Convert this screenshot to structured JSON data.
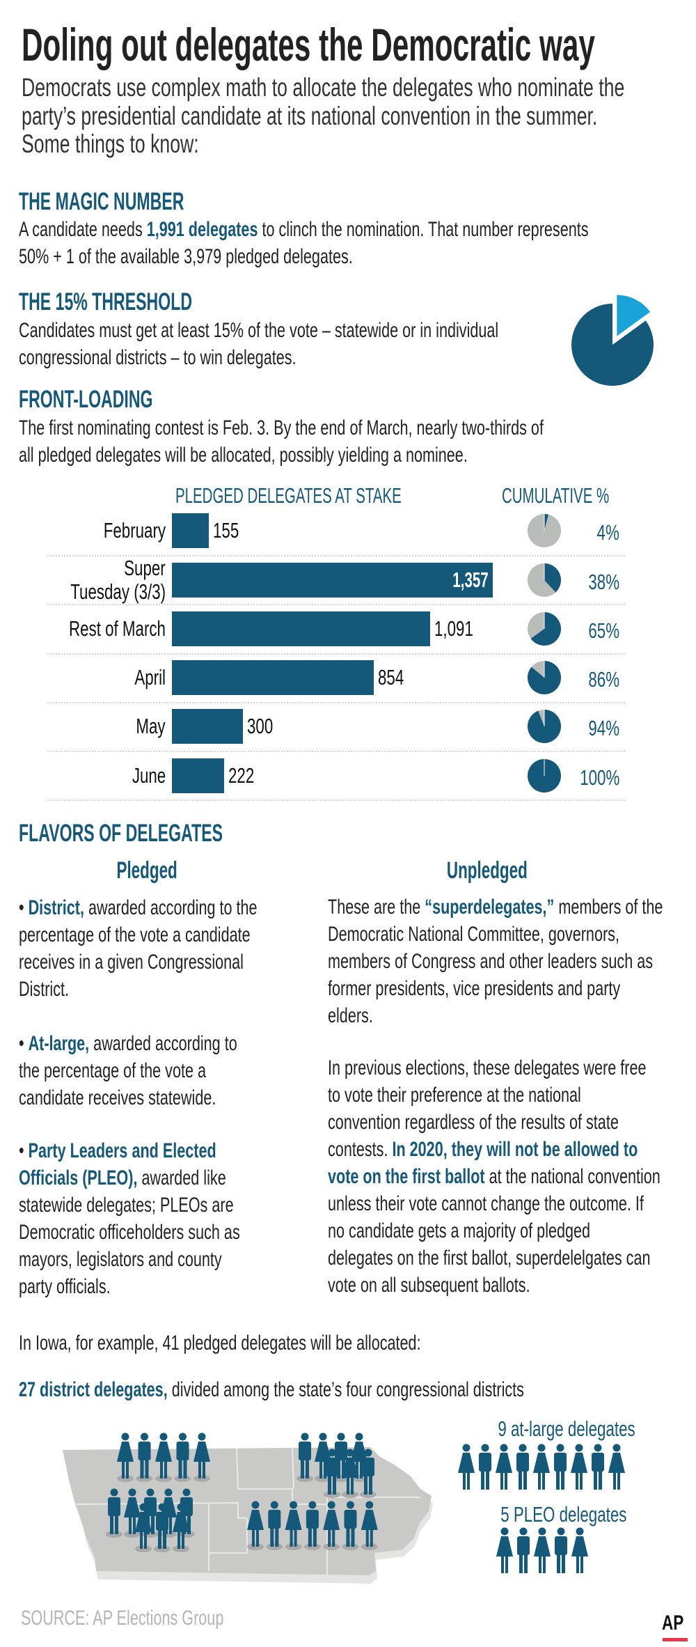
{
  "header": {
    "title": "Doling out delegates the Democratic way",
    "subtitle_lines": [
      [
        {
          "t": "Democrats use complex math to allocate the delegates who nominate the"
        }
      ],
      [
        {
          "t": "party’s presidential candidate at its national convention in the summer."
        }
      ],
      [
        {
          "t": "Some things to know:"
        }
      ]
    ]
  },
  "sections": {
    "magic": {
      "heading": "THE MAGIC NUMBER",
      "lines": [
        [
          {
            "t": "A candidate needs "
          },
          {
            "t": "1,991 delegates",
            "hl": true
          },
          {
            "t": " to clinch the nomination. That number represents"
          }
        ],
        [
          {
            "t": "50% + 1 of the available 3,979 pledged delegates."
          }
        ]
      ]
    },
    "threshold": {
      "heading": "THE 15% THRESHOLD",
      "lines": [
        [
          {
            "t": "Candidates must get at least 15% of the vote – statewide or in individual"
          }
        ],
        [
          {
            "t": "congressional districts – to win delegates."
          }
        ]
      ],
      "pie": {
        "threshold_percent": 15,
        "main_color": "#14587a",
        "slice_color": "#1aa3d9"
      }
    },
    "frontloading": {
      "heading": "FRONT-LOADING",
      "lines": [
        [
          {
            "t": "The first nominating contest is Feb. 3. By the end of March, nearly two-thirds of"
          }
        ],
        [
          {
            "t": "all pledged delegates will be allocated, possibly yielding a nominee."
          }
        ]
      ]
    }
  },
  "chart_data": {
    "type": "bar",
    "orientation": "horizontal",
    "value_header": "PLEDGED DELEGATES AT STAKE",
    "cumulative_header": "CUMULATIVE %",
    "categories": [
      "February",
      "Super Tuesday (3/3)",
      "Rest of March",
      "April",
      "May",
      "June"
    ],
    "category_lines": [
      [
        "February"
      ],
      [
        "Super",
        "Tuesday (3/3)"
      ],
      [
        "Rest of March"
      ],
      [
        "April"
      ],
      [
        "May"
      ],
      [
        "June"
      ]
    ],
    "values": [
      155,
      1357,
      1091,
      854,
      300,
      222
    ],
    "value_labels": [
      "155",
      "1,357",
      "1,091",
      "854",
      "300",
      "222"
    ],
    "cumulative_percent": [
      4,
      38,
      65,
      86,
      94,
      100
    ],
    "cumulative_labels": [
      "4%",
      "38%",
      "65%",
      "86%",
      "94%",
      "100%"
    ],
    "bar_color": "#14587a",
    "pie_remaining_color": "#b9bcb8",
    "grid": false
  },
  "flavors": {
    "heading": "FLAVORS OF DELEGATES",
    "pledged": {
      "heading": "Pledged",
      "paragraphs": [
        [
          [
            {
              "t": "• "
            },
            {
              "t": "District,",
              "hl": true
            },
            {
              "t": " awarded according to the"
            }
          ],
          [
            {
              "t": "percentage of the vote a candidate"
            }
          ],
          [
            {
              "t": "receives in a given Congressional"
            }
          ],
          [
            {
              "t": "District."
            }
          ]
        ],
        [
          [
            {
              "t": "• "
            },
            {
              "t": "At-large,",
              "hl": true
            },
            {
              "t": " awarded according to"
            }
          ],
          [
            {
              "t": "the percentage of the vote a"
            }
          ],
          [
            {
              "t": "candidate receives statewide."
            }
          ]
        ],
        [
          [
            {
              "t": "• "
            },
            {
              "t": "Party Leaders and Elected",
              "hl": true
            }
          ],
          [
            {
              "t": "Officials (PLEO),",
              "hl": true
            },
            {
              "t": " awarded like"
            }
          ],
          [
            {
              "t": "statewide delegates; PLEOs are"
            }
          ],
          [
            {
              "t": "Democratic officeholders such as"
            }
          ],
          [
            {
              "t": "mayors, legislators and county"
            }
          ],
          [
            {
              "t": "party officials."
            }
          ]
        ]
      ]
    },
    "unpledged": {
      "heading": "Unpledged",
      "paragraphs": [
        [
          [
            {
              "t": "These are the "
            },
            {
              "t": "“superdelegates,”",
              "hl": true
            },
            {
              "t": " members of the"
            }
          ],
          [
            {
              "t": "Democratic National Committee, governors,"
            }
          ],
          [
            {
              "t": "members of Congress and other leaders such as"
            }
          ],
          [
            {
              "t": "former presidents, vice presidents and party"
            }
          ],
          [
            {
              "t": "elders."
            }
          ]
        ],
        [
          [
            {
              "t": "In previous elections, these delegates were free"
            }
          ],
          [
            {
              "t": "to vote their preference at the national"
            }
          ],
          [
            {
              "t": "convention regardless of the results of state"
            }
          ],
          [
            {
              "t": "contests. "
            },
            {
              "t": "In 2020, they will not be allowed to",
              "hl": true
            }
          ],
          [
            {
              "t": "vote on the first ballot",
              "hl": true
            },
            {
              "t": " at the national convention"
            }
          ],
          [
            {
              "t": "unless their vote cannot change the outcome. If"
            }
          ],
          [
            {
              "t": "no candidate gets a majority of pledged"
            }
          ],
          [
            {
              "t": "delegates on the first ballot, superdelelgates can"
            }
          ],
          [
            {
              "t": "vote on all subsequent ballots."
            }
          ]
        ]
      ]
    }
  },
  "iowa": {
    "intro": [
      {
        "t": "In Iowa, for example, 41 pledged delegates will be allocated:"
      }
    ],
    "district_line": [
      {
        "t": "27 district delegates,",
        "hl": true
      },
      {
        "t": " divided among the state’s four congressional districts"
      }
    ],
    "district_delegates": 27,
    "at_large_label": "9 at-large delegates",
    "at_large_count": 9,
    "pleo_label": "5 PLEO delegates",
    "pleo_count": 5,
    "figure_color": "#14587a",
    "map_color": "#c9c9c7"
  },
  "footer": {
    "source": "SOURCE: AP Elections Group",
    "logo": "AP",
    "logo_accent": "#e8374a"
  }
}
